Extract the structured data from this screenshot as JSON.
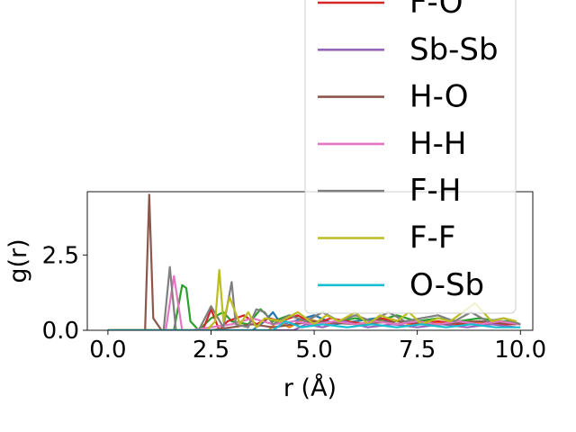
{
  "chart_data": {
    "type": "line",
    "xlabel": "r (Å)",
    "ylabel": "g(r)",
    "xlim": [
      -0.5,
      10.3
    ],
    "ylim": [
      0,
      4.6
    ],
    "x_ticks": [
      0.0,
      2.5,
      5.0,
      7.5,
      10.0
    ],
    "x_tick_labels": [
      "0.0",
      "2.5",
      "5.0",
      "7.5",
      "10.0"
    ],
    "y_ticks": [
      0.0,
      2.5
    ],
    "y_tick_labels": [
      "0.0",
      "2.5"
    ],
    "legend_placement": "top-right",
    "series": [
      {
        "name": "",
        "color": "#1f77b4",
        "x": [
          0,
          3.5,
          3.8,
          4.0,
          4.2,
          4.5,
          5.0,
          5.5,
          6.0,
          6.5,
          7.0,
          7.5,
          8.0,
          8.5,
          9.0,
          9.5,
          10.0
        ],
        "y": [
          0,
          0,
          0.3,
          0.6,
          0.2,
          0.3,
          0.5,
          0.2,
          0.3,
          0.4,
          0.2,
          0.3,
          0.2,
          0.3,
          0.2,
          0.3,
          0.2
        ]
      },
      {
        "name": "",
        "color": "#ff7f0e",
        "x": [
          0,
          3.9,
          4.1,
          4.4,
          4.8,
          5.3,
          5.8,
          6.3,
          6.8,
          7.3,
          7.8,
          8.3,
          8.8,
          9.3,
          9.8
        ],
        "y": [
          0,
          0,
          0.3,
          0.1,
          0.4,
          0.2,
          0.3,
          0.2,
          0.4,
          0.2,
          0.3,
          0.2,
          0.3,
          0.2,
          0.3
        ]
      },
      {
        "name": "",
        "color": "#2ca02c",
        "x": [
          0,
          1.6,
          1.8,
          1.9,
          2.0,
          2.2,
          2.5,
          2.8,
          3.0,
          3.4,
          3.7,
          4.0,
          4.4,
          4.8,
          5.2,
          5.6,
          6.0,
          6.5,
          7.0,
          7.5,
          8.0,
          8.5,
          9.0,
          9.5,
          9.9
        ],
        "y": [
          0,
          0,
          1.5,
          1.4,
          0.3,
          0,
          0.4,
          0.6,
          0.3,
          0.2,
          0.7,
          0.3,
          0.5,
          0.3,
          0.6,
          0.3,
          0.4,
          0.3,
          0.5,
          0.3,
          0.4,
          0.3,
          0.4,
          0.3,
          0.3
        ]
      },
      {
        "name": "F-O",
        "color": "#d62728",
        "x": [
          0,
          2.3,
          2.5,
          2.7,
          2.9,
          3.3,
          3.6,
          3.9,
          4.2,
          4.6,
          5.0,
          5.4,
          5.8,
          6.2,
          6.6,
          7.0,
          7.5,
          8.0,
          8.5,
          9.0,
          9.5,
          9.9
        ],
        "y": [
          0,
          0,
          0.7,
          0,
          0.3,
          0.5,
          0.2,
          0.4,
          0.3,
          0.5,
          0.2,
          0.4,
          0.3,
          0.2,
          0.4,
          0.3,
          0.2,
          0.3,
          0.2,
          0.3,
          0.2,
          0.2
        ]
      },
      {
        "name": "Sb-Sb",
        "color": "#9467bd",
        "x": [
          0,
          4.5,
          4.8,
          5.2,
          5.7,
          6.3,
          6.9,
          7.5,
          8.1,
          8.7,
          9.3,
          9.9
        ],
        "y": [
          0,
          0,
          0.2,
          0.1,
          0.3,
          0.1,
          0.2,
          0.1,
          0.2,
          0.1,
          0.2,
          0.1
        ]
      },
      {
        "name": "H-O",
        "color": "#8c564b",
        "x": [
          0,
          0.9,
          1.0,
          1.1,
          1.3,
          1.6,
          2.0,
          2.5,
          3.0,
          3.5,
          4.0,
          5.0,
          6.0,
          7.0,
          8.0,
          9.0,
          10.0
        ],
        "y": [
          0,
          0,
          4.5,
          0.4,
          0,
          0,
          0,
          0,
          0.1,
          0.2,
          0.1,
          0.3,
          0.2,
          0.3,
          0.2,
          0.3,
          0.2
        ]
      },
      {
        "name": "H-H",
        "color": "#e377c2",
        "x": [
          0,
          1.4,
          1.6,
          1.8,
          2.0,
          3.0,
          3.5,
          4.0,
          4.5,
          5.0,
          5.5,
          6.0,
          6.5,
          7.0,
          7.5,
          8.0,
          8.5,
          9.0,
          9.5,
          10.0
        ],
        "y": [
          0,
          0,
          1.8,
          0,
          0,
          0.2,
          0.4,
          0.2,
          0.3,
          0.2,
          0.3,
          0.2,
          0.3,
          0.2,
          0.3,
          0.2,
          0.3,
          0.2,
          0.3,
          0.2
        ]
      },
      {
        "name": "F-H",
        "color": "#7f7f7f",
        "x": [
          0,
          1.35,
          1.5,
          1.65,
          2.2,
          2.5,
          2.8,
          3.0,
          3.1,
          3.4,
          3.6,
          3.8,
          4.0,
          4.4,
          4.8,
          5.2,
          5.6,
          6.0,
          6.4,
          6.8,
          7.2,
          7.6,
          8.0,
          8.4,
          8.8,
          9.2,
          9.6,
          10.0
        ],
        "y": [
          0,
          0,
          2.1,
          0,
          0,
          0.8,
          0.1,
          1.6,
          0.2,
          0.1,
          0.7,
          0.6,
          0.2,
          0.5,
          0.3,
          0.6,
          0.3,
          0.5,
          0.3,
          0.6,
          0.3,
          0.4,
          0.5,
          0.3,
          0.6,
          0.3,
          0.4,
          0.2
        ]
      },
      {
        "name": "F-F",
        "color": "#bcbd22",
        "x": [
          0,
          2.4,
          2.6,
          2.7,
          2.8,
          2.95,
          3.2,
          3.4,
          3.6,
          3.8,
          4.2,
          4.6,
          5.0,
          5.3,
          5.6,
          6.0,
          6.3,
          6.6,
          7.0,
          7.3,
          7.6,
          8.0,
          8.3,
          8.6,
          8.9,
          9.3,
          9.6,
          9.9
        ],
        "y": [
          0,
          0,
          0.3,
          2.0,
          0.3,
          1.1,
          0.2,
          0.6,
          0.1,
          0.4,
          0.3,
          0.6,
          0.2,
          0.5,
          0.3,
          0.6,
          0.2,
          0.5,
          0.3,
          0.6,
          0.2,
          0.4,
          0.3,
          0.6,
          0.9,
          0.3,
          0.4,
          0.3
        ]
      },
      {
        "name": "O-Sb",
        "color": "#17becf",
        "x": [
          0,
          4.0,
          4.3,
          4.7,
          5.2,
          5.8,
          6.4,
          7.0,
          7.6,
          8.2,
          8.8,
          9.4,
          10.0
        ],
        "y": [
          0,
          0,
          0.3,
          0.1,
          0.2,
          0.1,
          0.2,
          0.1,
          0.2,
          0.1,
          0.2,
          0.1,
          0.1
        ]
      }
    ]
  }
}
